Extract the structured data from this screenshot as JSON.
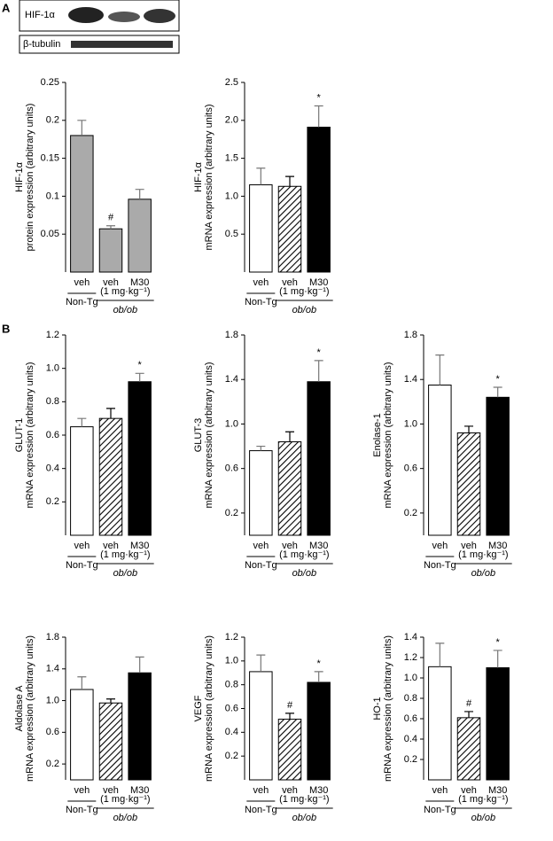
{
  "panel_labels": [
    "A",
    "B"
  ],
  "blot": {
    "labels": [
      "HIF-1α",
      "β-tubulin"
    ]
  },
  "chart_data": [
    {
      "type": "bar",
      "y_label": [
        "HIF-1α",
        "protein expression (arbitrary units)"
      ],
      "categories": [
        "veh",
        "veh",
        "M30"
      ],
      "values": [
        0.18,
        0.057,
        0.096
      ],
      "errors": [
        0.02,
        0.004,
        0.013
      ],
      "markers": [
        null,
        "#",
        null
      ],
      "colors": [
        "#aaaaaa",
        "#aaaaaa",
        "#aaaaaa"
      ],
      "hatch": [
        false,
        false,
        false
      ],
      "ylim": [
        0,
        0.25
      ],
      "yticks": [
        0.05,
        0.1,
        0.15,
        0.2,
        0.25
      ],
      "group_labels": [
        "Non-Tg",
        "ob/ob"
      ],
      "dose": "(1 mg·kg⁻¹)"
    },
    {
      "type": "bar",
      "y_label": [
        "HIF-1α",
        "mRNA expression (arbitrary units)"
      ],
      "categories": [
        "veh",
        "veh",
        "M30"
      ],
      "values": [
        1.15,
        1.13,
        1.91
      ],
      "errors": [
        0.22,
        0.13,
        0.28
      ],
      "markers": [
        null,
        null,
        "*"
      ],
      "colors": [
        "#ffffff",
        "#ffffff",
        "#000000"
      ],
      "hatch": [
        false,
        true,
        false
      ],
      "ylim": [
        0,
        2.5
      ],
      "yticks": [
        0.5,
        {
          "value": 1,
          "label": "1.0"
        },
        1.5,
        {
          "value": 2,
          "label": "2.0"
        },
        2.5
      ],
      "group_labels": [
        "Non-Tg",
        "ob/ob"
      ],
      "dose": "(1 mg·kg⁻¹)"
    },
    {
      "type": "bar",
      "y_label": [
        "GLUT-1",
        "mRNA expression (arbitrary units)"
      ],
      "categories": [
        "veh",
        "veh",
        "M30"
      ],
      "values": [
        0.65,
        0.7,
        0.92
      ],
      "errors": [
        0.05,
        0.06,
        0.05
      ],
      "markers": [
        null,
        null,
        "*"
      ],
      "colors": [
        "#ffffff",
        "#ffffff",
        "#000000"
      ],
      "hatch": [
        false,
        true,
        false
      ],
      "ylim": [
        0,
        1.2
      ],
      "yticks": [
        0.2,
        0.4,
        0.6,
        0.8,
        {
          "value": 1,
          "label": "1.0"
        },
        1.2
      ],
      "group_labels": [
        "Non-Tg",
        "ob/ob"
      ],
      "dose": "(1 mg·kg⁻¹)"
    },
    {
      "type": "bar",
      "y_label": [
        "GLUT-3",
        "mRNA expression (arbitrary units)"
      ],
      "categories": [
        "veh",
        "veh",
        "M30"
      ],
      "values": [
        0.76,
        0.84,
        1.38
      ],
      "errors": [
        0.04,
        0.09,
        0.19
      ],
      "markers": [
        null,
        null,
        "*"
      ],
      "colors": [
        "#ffffff",
        "#ffffff",
        "#000000"
      ],
      "hatch": [
        false,
        true,
        false
      ],
      "ylim": [
        0,
        1.8
      ],
      "yticks": [
        0.2,
        0.6,
        {
          "value": 1,
          "label": "1.0"
        },
        1.4,
        1.8
      ],
      "group_labels": [
        "Non-Tg",
        "ob/ob"
      ],
      "dose": "(1 mg·kg⁻¹)"
    },
    {
      "type": "bar",
      "y_label": [
        "Enolase-1",
        "mRNA expression (arbitrary units)"
      ],
      "categories": [
        "veh",
        "veh",
        "M30"
      ],
      "values": [
        1.35,
        0.92,
        1.24
      ],
      "errors": [
        0.27,
        0.06,
        0.09
      ],
      "markers": [
        null,
        null,
        "*"
      ],
      "colors": [
        "#ffffff",
        "#ffffff",
        "#000000"
      ],
      "hatch": [
        false,
        true,
        false
      ],
      "ylim": [
        0,
        1.8
      ],
      "yticks": [
        0.2,
        0.6,
        {
          "value": 1,
          "label": "1.0"
        },
        1.4,
        1.8
      ],
      "group_labels": [
        "Non-Tg",
        "ob/ob"
      ],
      "dose": "(1 mg·kg⁻¹)"
    },
    {
      "type": "bar",
      "y_label": [
        "Aldolase A",
        "mRNA expression (arbitrary units)"
      ],
      "categories": [
        "veh",
        "veh",
        "M30"
      ],
      "values": [
        1.14,
        0.97,
        1.35
      ],
      "errors": [
        0.16,
        0.05,
        0.2
      ],
      "markers": [
        null,
        null,
        null
      ],
      "colors": [
        "#ffffff",
        "#ffffff",
        "#000000"
      ],
      "hatch": [
        false,
        true,
        false
      ],
      "ylim": [
        0,
        1.8
      ],
      "yticks": [
        0.2,
        0.6,
        {
          "value": 1,
          "label": "1.0"
        },
        1.4,
        1.8
      ],
      "group_labels": [
        "Non-Tg",
        "ob/ob"
      ],
      "dose": "(1 mg·kg⁻¹)"
    },
    {
      "type": "bar",
      "y_label": [
        "VEGF",
        "mRNA expression (arbitrary units)"
      ],
      "categories": [
        "veh",
        "veh",
        "M30"
      ],
      "values": [
        0.91,
        0.51,
        0.82
      ],
      "errors": [
        0.14,
        0.05,
        0.09
      ],
      "markers": [
        null,
        "#",
        "*"
      ],
      "colors": [
        "#ffffff",
        "#ffffff",
        "#000000"
      ],
      "hatch": [
        false,
        true,
        false
      ],
      "ylim": [
        0,
        1.2
      ],
      "yticks": [
        0.2,
        0.4,
        0.6,
        0.8,
        {
          "value": 1,
          "label": "1.0"
        },
        1.2
      ],
      "group_labels": [
        "Non-Tg",
        "ob/ob"
      ],
      "dose": "(1 mg·kg⁻¹)"
    },
    {
      "type": "bar",
      "y_label": [
        "HO-1",
        "mRNA expression (arbitrary units)"
      ],
      "categories": [
        "veh",
        "veh",
        "M30"
      ],
      "values": [
        1.11,
        0.61,
        1.1
      ],
      "errors": [
        0.23,
        0.06,
        0.17
      ],
      "markers": [
        null,
        "#",
        "*"
      ],
      "colors": [
        "#ffffff",
        "#ffffff",
        "#000000"
      ],
      "hatch": [
        false,
        true,
        false
      ],
      "ylim": [
        0,
        1.4
      ],
      "yticks": [
        0.2,
        0.4,
        0.6,
        0.8,
        {
          "value": 1,
          "label": "1.0"
        },
        1.2,
        1.4
      ],
      "group_labels": [
        "Non-Tg",
        "ob/ob"
      ],
      "dose": "(1 mg·kg⁻¹)"
    }
  ]
}
